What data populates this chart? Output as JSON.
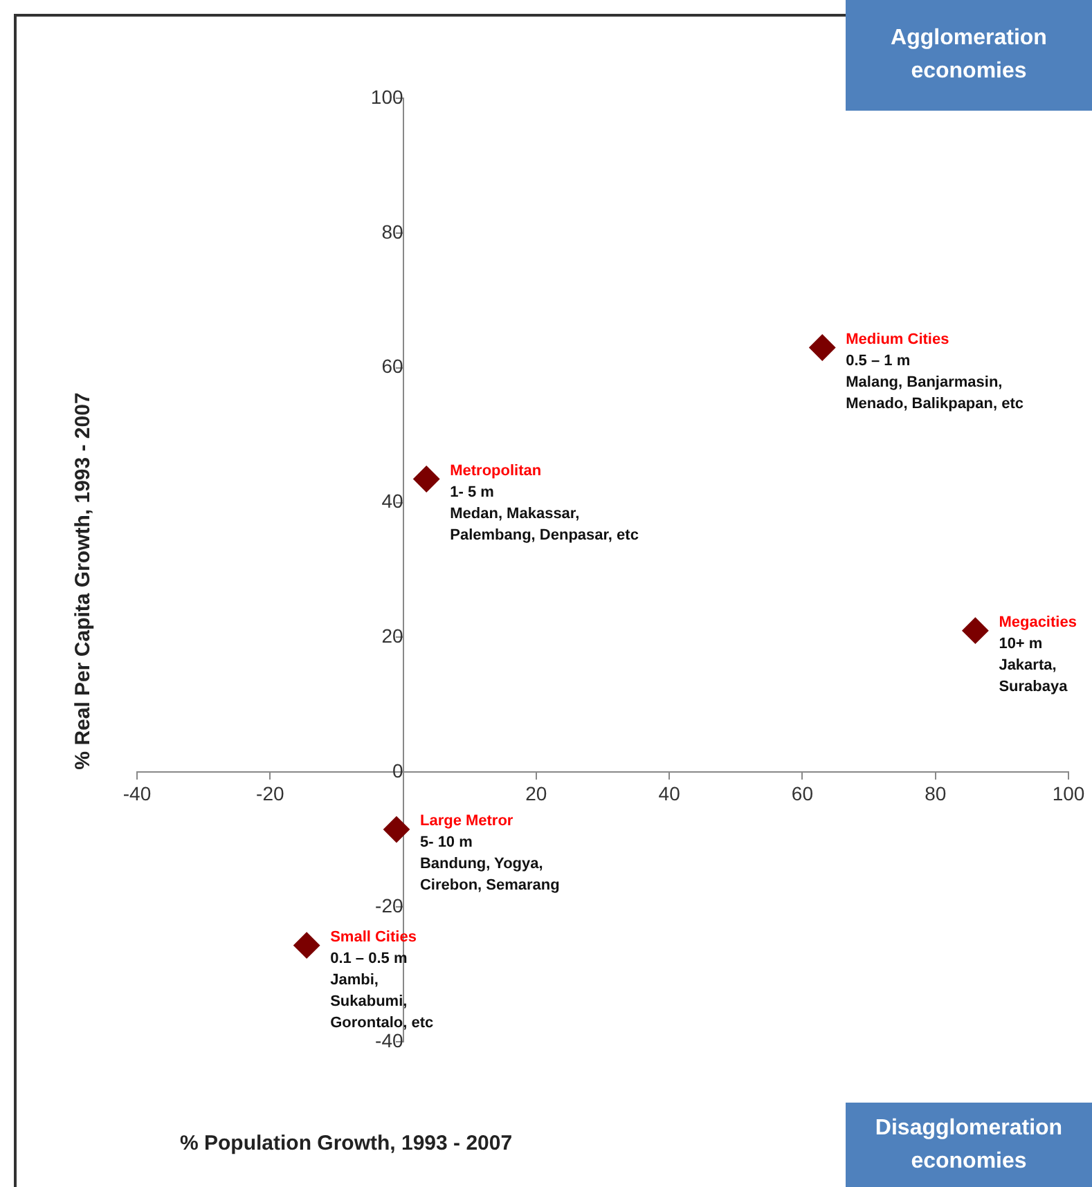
{
  "chart_data": {
    "type": "scatter",
    "xlabel": "% Population Growth, 1993 - 2007",
    "ylabel": "% Real Per Capita Growth, 1993 - 2007",
    "x": [
      -14.5,
      -1,
      3.5,
      63,
      86
    ],
    "series": [
      {
        "color": "#7b0000",
        "values": [
          -25.7,
          -8.5,
          43.5,
          63,
          21
        ]
      }
    ],
    "xlim": [
      -40,
      100
    ],
    "xticks": [
      -40,
      -20,
      {
        "value": 0,
        "label": null
      },
      20,
      40,
      60,
      80,
      100
    ],
    "ylim": [
      -40,
      100
    ],
    "yticks": [
      -40,
      -20,
      0,
      20,
      40,
      60,
      80,
      100
    ],
    "grid": false,
    "legend": false,
    "marker": "diamond",
    "annotations": [
      "Agglomeration economies",
      "Disagglomeration economies",
      {
        "text": "Small Cities\n0.1 – 0.5 m\nJambi,\nSukabumi,\nGorontalo, etc",
        "x": -14.5,
        "y": -25.7
      },
      {
        "text": "Large Metror\n5- 10 m\nBandung, Yogya,\nCirebon, Semarang",
        "x": -1,
        "y": -8.5
      },
      {
        "text": "Metropolitan\n1- 5 m\nMedan, Makassar,\nPalembang, Denpasar, etc",
        "x": 3.5,
        "y": 43.5
      },
      {
        "text": "Medium Cities\n0.5 – 1 m\nMalang, Banjarmasin,\nMenado, Balikpapan, etc",
        "x": 63,
        "y": 63
      },
      {
        "text": "Megacities\n10+ m\nJakarta,\nSurabaya",
        "x": 86,
        "y": 21
      }
    ]
  }
}
